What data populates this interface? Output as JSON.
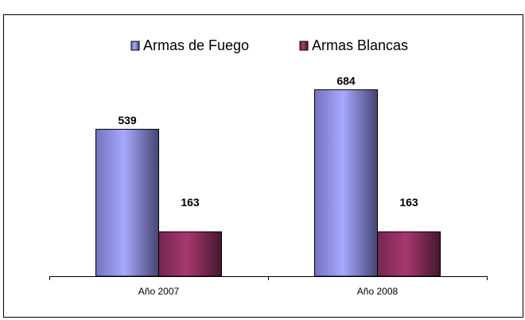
{
  "chart_data": {
    "type": "bar",
    "categories": [
      "Año 2007",
      "Año 2008"
    ],
    "series": [
      {
        "name": "Armas de Fuego",
        "color": "#9999ff",
        "values": [
          539,
          684
        ]
      },
      {
        "name": "Armas Blancas",
        "color": "#993366",
        "values": [
          163,
          163
        ]
      }
    ],
    "ylim": [
      0,
      800
    ],
    "legend": "top"
  }
}
